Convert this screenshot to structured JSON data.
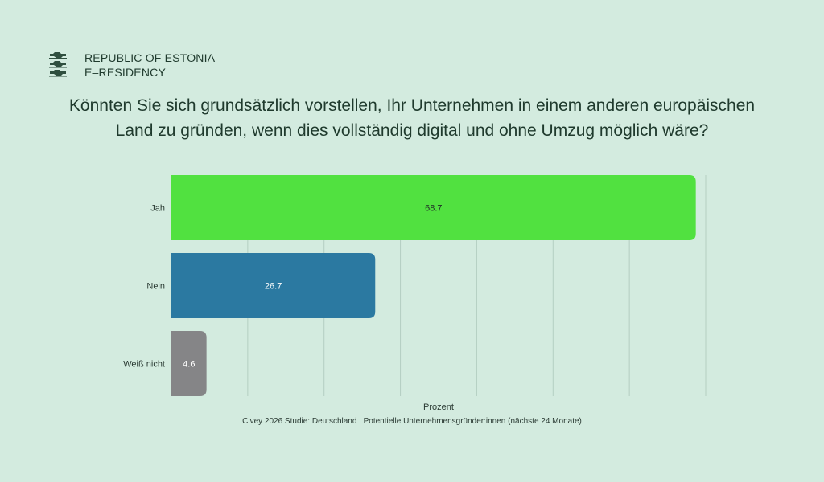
{
  "header": {
    "org_line1": "REPUBLIC OF ESTONIA",
    "org_line2": "E–RESIDENCY",
    "logo_icon": "three-lions-coat-of-arms-icon"
  },
  "chart_data": {
    "type": "bar",
    "orientation": "horizontal",
    "title": "Könnten Sie sich grundsätzlich vorstellen, Ihr Unternehmen in einem anderen europäischen Land zu gründen, wenn dies vollständig digital und ohne Umzug möglich wäre?",
    "categories": [
      "Jah",
      "Nein",
      "Weiß nicht"
    ],
    "values": [
      68.7,
      26.7,
      4.6
    ],
    "colors": [
      "#51e140",
      "#2b79a1",
      "#858587"
    ],
    "xlabel": "Prozent",
    "ylabel": "",
    "xlim": [
      0,
      70
    ],
    "grid": true,
    "legend": "none"
  },
  "footer": {
    "source": "Civey 2026 Studie: Deutschland | Potentielle Unternehmensgründer:innen (nächste 24 Monate)"
  }
}
